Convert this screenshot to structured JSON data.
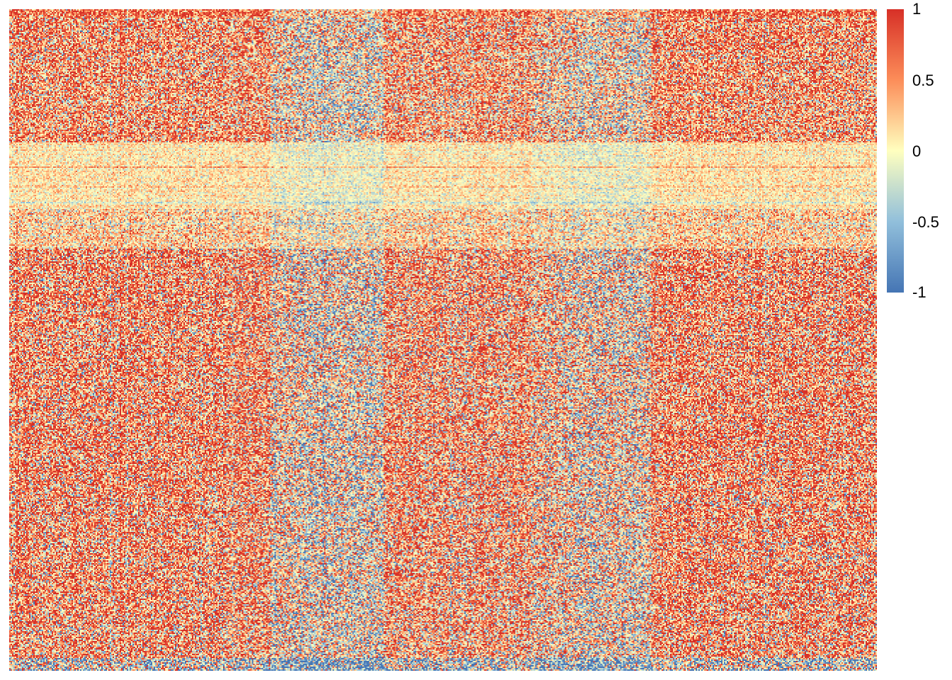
{
  "chart_data": {
    "type": "heatmap",
    "title": "",
    "xlabel": "",
    "ylabel": "",
    "color_scale": {
      "min": -1,
      "max": 1,
      "colors": [
        "#4575B4",
        "#91BFDB",
        "#FFFFBF",
        "#FC8D59",
        "#D73027"
      ],
      "ticks": [
        {
          "value": 1,
          "label": "1"
        },
        {
          "value": 0.5,
          "label": "0.5"
        },
        {
          "value": 0,
          "label": "0"
        },
        {
          "value": -0.5,
          "label": "-0.5"
        },
        {
          "value": -1,
          "label": "-1"
        }
      ]
    },
    "grid_resolution": {
      "rows": 467,
      "cols": 612
    },
    "row_groups": [
      {
        "rows": [
          0,
          0.012
        ],
        "mean": 0.6,
        "spread": 0.6
      },
      {
        "rows": [
          0.012,
          0.08
        ],
        "mean": 0.35,
        "spread": 0.75
      },
      {
        "rows": [
          0.08,
          0.2
        ],
        "mean": 0.3,
        "spread": 0.7
      },
      {
        "rows": [
          0.2,
          0.3
        ],
        "mean": 0.05,
        "spread": 0.25
      },
      {
        "rows": [
          0.3,
          0.36
        ],
        "mean": 0.15,
        "spread": 0.45
      },
      {
        "rows": [
          0.36,
          0.9
        ],
        "mean": 0.35,
        "spread": 0.8
      },
      {
        "rows": [
          0.9,
          0.98
        ],
        "mean": 0.3,
        "spread": 0.8
      },
      {
        "rows": [
          0.98,
          1.0
        ],
        "mean": -0.3,
        "spread": 0.9
      }
    ],
    "col_groups": [
      {
        "cols": [
          0,
          0.3
        ],
        "offset": 0.1
      },
      {
        "cols": [
          0.3,
          0.34
        ],
        "offset": -0.25
      },
      {
        "cols": [
          0.34,
          0.43
        ],
        "offset": -0.35
      },
      {
        "cols": [
          0.43,
          0.6
        ],
        "offset": 0.05
      },
      {
        "cols": [
          0.6,
          0.64
        ],
        "offset": -0.15
      },
      {
        "cols": [
          0.64,
          0.74
        ],
        "offset": -0.3
      },
      {
        "cols": [
          0.74,
          1.0
        ],
        "offset": 0.1
      }
    ]
  }
}
